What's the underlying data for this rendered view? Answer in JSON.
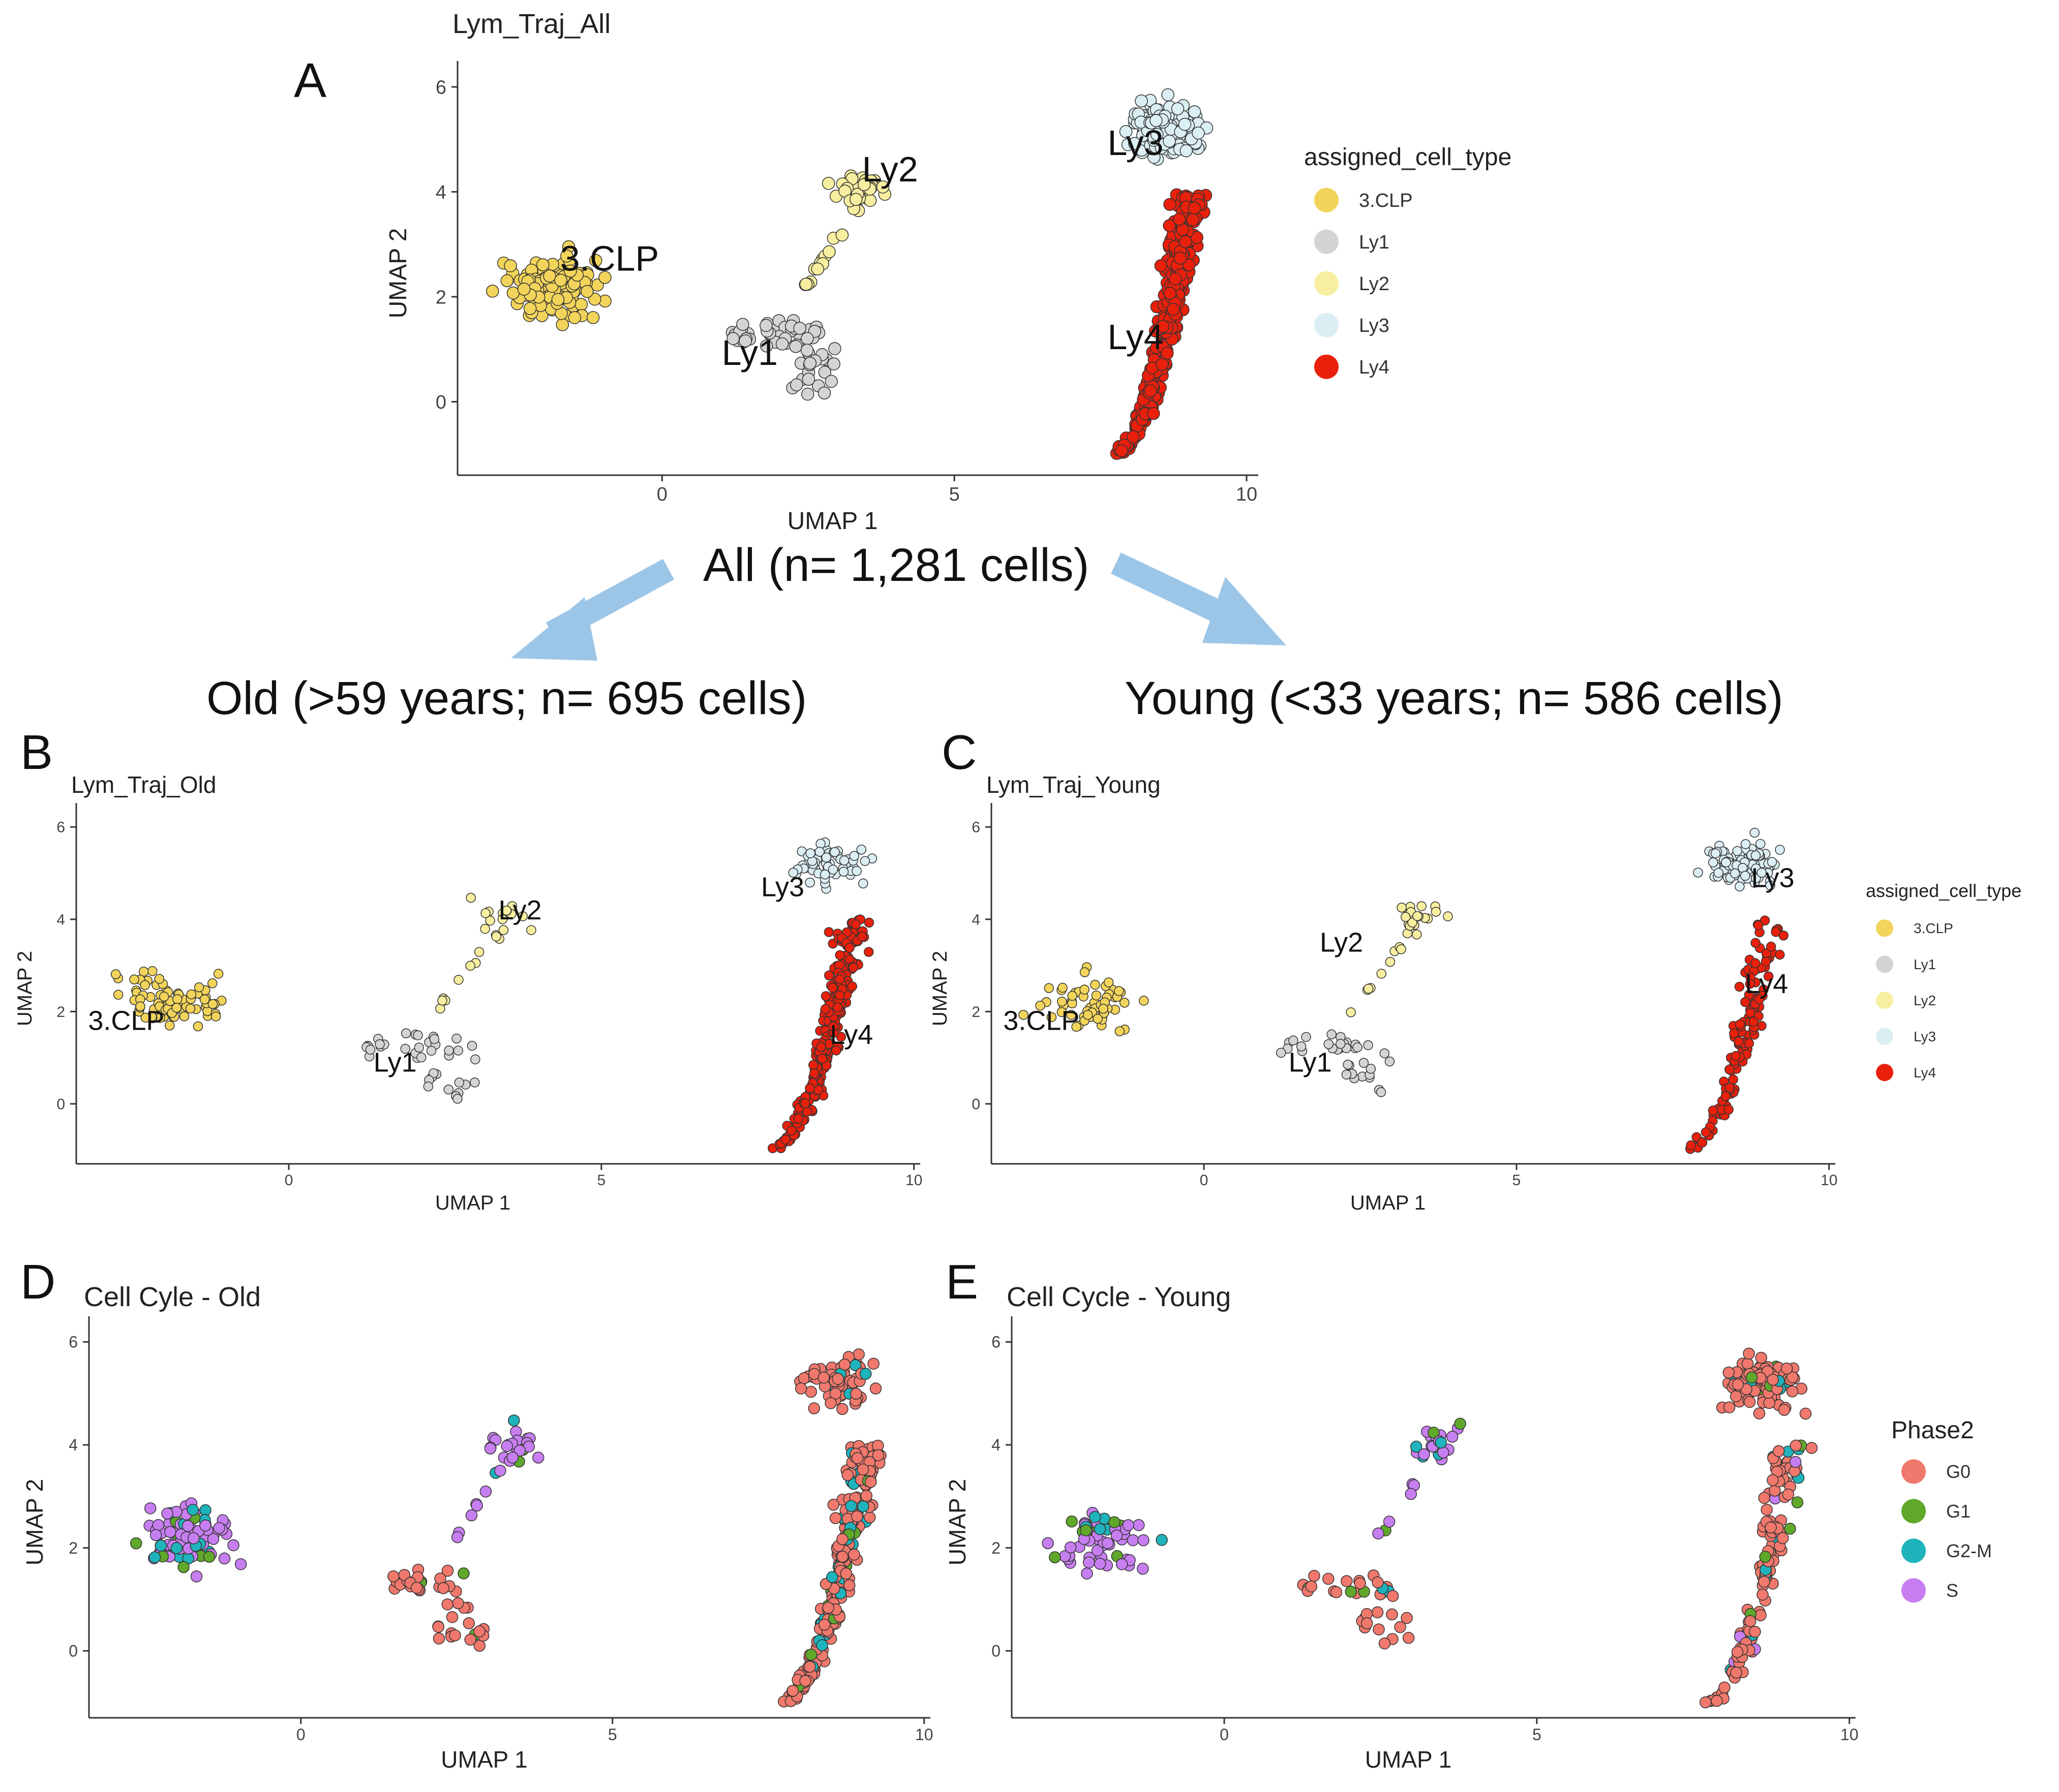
{
  "figure": {
    "panel_labels": [
      "A",
      "B",
      "C",
      "D",
      "E"
    ],
    "all_caption": "All (n= 1,281 cells)",
    "old_caption": "Old (>59 years; n= 695 cells)",
    "young_caption": "Young (<33 years; n= 586 cells)"
  },
  "legends": {
    "cell_type": {
      "title": "assigned_cell_type",
      "entries": [
        {
          "label": "3.CLP",
          "color": "#f2d45a"
        },
        {
          "label": "Ly1",
          "color": "#d4d4d4"
        },
        {
          "label": "Ly2",
          "color": "#f7eea0"
        },
        {
          "label": "Ly3",
          "color": "#dbeef3"
        },
        {
          "label": "Ly4",
          "color": "#e8200c"
        }
      ]
    },
    "phase": {
      "title": "Phase2",
      "entries": [
        {
          "label": "G0",
          "color": "#f0786c"
        },
        {
          "label": "G1",
          "color": "#5fa82a"
        },
        {
          "label": "G2-M",
          "color": "#1fb3bb"
        },
        {
          "label": "S",
          "color": "#c77ef0"
        }
      ]
    }
  },
  "chart_data": [
    {
      "id": "A",
      "type": "scatter",
      "title": "Lym_Traj_All",
      "xlabel": "UMAP 1",
      "ylabel": "UMAP 2",
      "xlim": [
        -3.5,
        10.2
      ],
      "ylim": [
        -1.4,
        6.3
      ],
      "xticks": [
        0,
        5,
        10
      ],
      "yticks": [
        0,
        2,
        4,
        6
      ],
      "color_by": "cell_type",
      "clusters": [
        {
          "name": "3.CLP",
          "label": "3.CLP",
          "cx": -1.9,
          "cy": 2.2,
          "label_x": -0.9,
          "label_y": 2.5,
          "points": 130
        },
        {
          "name": "Ly1",
          "label": "Ly1",
          "cx": 2.1,
          "cy": 1.1,
          "label_x": 1.5,
          "label_y": 0.7,
          "points": 70
        },
        {
          "name": "Ly2",
          "label": "Ly2",
          "cx": 3.4,
          "cy": 3.9,
          "label_x": 3.9,
          "label_y": 4.2,
          "points": 50
        },
        {
          "name": "Ly3",
          "label": "Ly3",
          "cx": 8.6,
          "cy": 5.1,
          "label_x": 8.1,
          "label_y": 4.7,
          "points": 160
        },
        {
          "name": "Ly4",
          "label": "Ly4",
          "cx": 8.6,
          "cy": 1.6,
          "label_x": 8.1,
          "label_y": 1.0,
          "points": 300
        }
      ]
    },
    {
      "id": "B",
      "type": "scatter",
      "title": "Lym_Traj_Old",
      "xlabel": "UMAP 1",
      "ylabel": "UMAP 2",
      "xlim": [
        -3.4,
        10.1
      ],
      "ylim": [
        -1.3,
        6.3
      ],
      "xticks": [
        0,
        5,
        10
      ],
      "yticks": [
        0,
        2,
        4,
        6
      ],
      "color_by": "cell_type",
      "clusters": [
        {
          "name": "3.CLP",
          "label": "3.CLP",
          "cx": -1.9,
          "cy": 2.2,
          "label_x": -2.6,
          "label_y": 1.6,
          "points": 80
        },
        {
          "name": "Ly1",
          "label": "Ly1",
          "cx": 2.1,
          "cy": 1.1,
          "label_x": 1.7,
          "label_y": 0.7,
          "points": 40
        },
        {
          "name": "Ly2",
          "label": "Ly2",
          "cx": 3.4,
          "cy": 3.9,
          "label_x": 3.7,
          "label_y": 4.0,
          "points": 30
        },
        {
          "name": "Ly3",
          "label": "Ly3",
          "cx": 8.5,
          "cy": 5.0,
          "label_x": 7.9,
          "label_y": 4.5,
          "points": 60
        },
        {
          "name": "Ly4",
          "label": "Ly4",
          "cx": 8.6,
          "cy": 1.6,
          "label_x": 9.0,
          "label_y": 1.3,
          "points": 260
        }
      ]
    },
    {
      "id": "C",
      "type": "scatter",
      "title": "Lym_Traj_Young",
      "xlabel": "UMAP 1",
      "ylabel": "UMAP 2",
      "xlim": [
        -3.4,
        10.1
      ],
      "ylim": [
        -1.3,
        6.3
      ],
      "xticks": [
        0,
        5,
        10
      ],
      "yticks": [
        0,
        2,
        4,
        6
      ],
      "color_by": "cell_type",
      "clusters": [
        {
          "name": "3.CLP",
          "label": "3.CLP",
          "cx": -1.9,
          "cy": 2.2,
          "label_x": -2.6,
          "label_y": 1.6,
          "points": 60
        },
        {
          "name": "Ly1",
          "label": "Ly1",
          "cx": 2.1,
          "cy": 1.1,
          "label_x": 1.7,
          "label_y": 0.7,
          "points": 35
        },
        {
          "name": "Ly2",
          "label": "Ly2",
          "cx": 3.4,
          "cy": 3.9,
          "label_x": 2.2,
          "label_y": 3.3,
          "points": 30
        },
        {
          "name": "Ly3",
          "label": "Ly3",
          "cx": 8.6,
          "cy": 5.1,
          "label_x": 9.1,
          "label_y": 4.7,
          "points": 100
        },
        {
          "name": "Ly4",
          "label": "Ly4",
          "cx": 8.6,
          "cy": 1.6,
          "label_x": 9.0,
          "label_y": 2.4,
          "points": 120
        }
      ]
    },
    {
      "id": "D",
      "type": "scatter",
      "title": "Cell Cyle - Old",
      "xlabel": "UMAP 1",
      "ylabel": "UMAP 2",
      "xlim": [
        -3.4,
        10.1
      ],
      "ylim": [
        -1.3,
        6.3
      ],
      "xticks": [
        0,
        5,
        10
      ],
      "yticks": [
        0,
        2,
        4,
        6
      ],
      "color_by": "phase",
      "clusters": [
        {
          "name": "3.CLP",
          "cx": -1.9,
          "cy": 2.2,
          "points": 80,
          "phase_mix": [
            0.0,
            0.18,
            0.17,
            0.65
          ]
        },
        {
          "name": "Ly1",
          "cx": 2.1,
          "cy": 1.1,
          "points": 40,
          "phase_mix": [
            0.9,
            0.1,
            0.0,
            0.0
          ]
        },
        {
          "name": "Ly2",
          "cx": 3.4,
          "cy": 3.9,
          "points": 30,
          "phase_mix": [
            0.0,
            0.08,
            0.08,
            0.84
          ]
        },
        {
          "name": "Ly3",
          "cx": 8.5,
          "cy": 5.0,
          "points": 60,
          "phase_mix": [
            0.88,
            0.02,
            0.1,
            0.0
          ]
        },
        {
          "name": "Ly4",
          "cx": 8.6,
          "cy": 1.6,
          "points": 260,
          "phase_mix": [
            0.85,
            0.05,
            0.1,
            0.0
          ]
        }
      ]
    },
    {
      "id": "E",
      "type": "scatter",
      "title": "Cell Cycle - Young",
      "xlabel": "UMAP 1",
      "ylabel": "UMAP 2",
      "xlim": [
        -3.4,
        10.1
      ],
      "ylim": [
        -1.3,
        6.3
      ],
      "xticks": [
        0,
        5,
        10
      ],
      "yticks": [
        0,
        2,
        4,
        6
      ],
      "color_by": "phase",
      "clusters": [
        {
          "name": "3.CLP",
          "cx": -1.9,
          "cy": 2.2,
          "points": 60,
          "phase_mix": [
            0.0,
            0.2,
            0.12,
            0.68
          ]
        },
        {
          "name": "Ly1",
          "cx": 2.1,
          "cy": 1.1,
          "points": 35,
          "phase_mix": [
            0.9,
            0.05,
            0.05,
            0.0
          ]
        },
        {
          "name": "Ly2",
          "cx": 3.4,
          "cy": 3.9,
          "points": 30,
          "phase_mix": [
            0.0,
            0.15,
            0.1,
            0.75
          ]
        },
        {
          "name": "Ly3",
          "cx": 8.6,
          "cy": 5.1,
          "points": 100,
          "phase_mix": [
            0.9,
            0.04,
            0.06,
            0.0
          ]
        },
        {
          "name": "Ly4",
          "cx": 8.6,
          "cy": 1.6,
          "points": 120,
          "phase_mix": [
            0.88,
            0.04,
            0.06,
            0.02
          ]
        }
      ]
    }
  ]
}
